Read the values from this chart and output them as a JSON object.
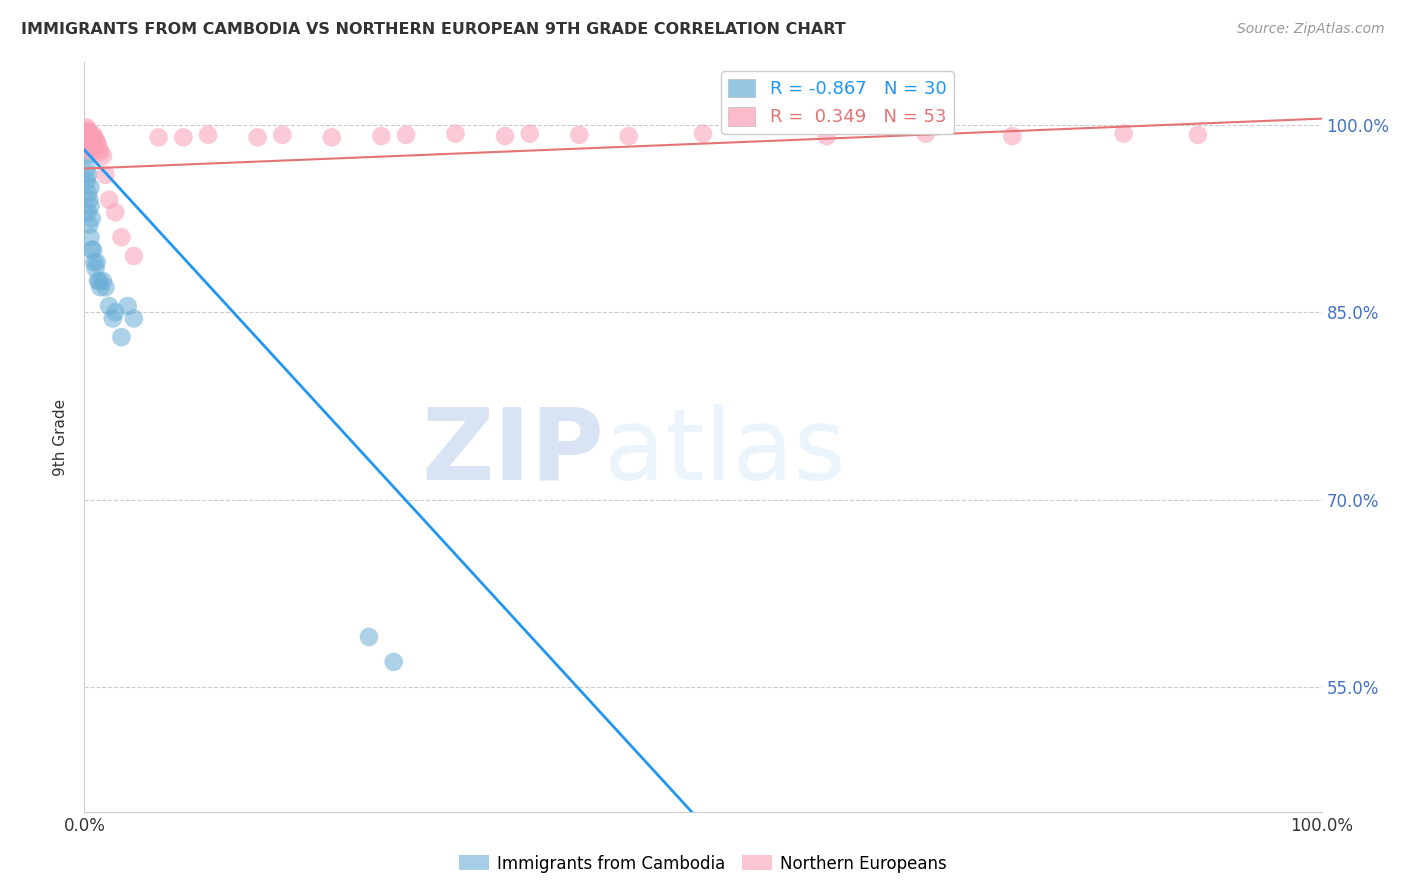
{
  "title": "IMMIGRANTS FROM CAMBODIA VS NORTHERN EUROPEAN 9TH GRADE CORRELATION CHART",
  "source": "Source: ZipAtlas.com",
  "ylabel": "9th Grade",
  "legend_blue_r": "-0.867",
  "legend_blue_n": "30",
  "legend_pink_r": "0.349",
  "legend_pink_n": "53",
  "blue_scatter_x": [
    0.001,
    0.002,
    0.002,
    0.003,
    0.003,
    0.003,
    0.004,
    0.004,
    0.005,
    0.005,
    0.005,
    0.006,
    0.006,
    0.007,
    0.008,
    0.009,
    0.01,
    0.011,
    0.012,
    0.013,
    0.015,
    0.017,
    0.02,
    0.023,
    0.025,
    0.03,
    0.035,
    0.04,
    0.23,
    0.25
  ],
  "blue_scatter_y": [
    0.975,
    0.965,
    0.955,
    0.96,
    0.945,
    0.93,
    0.94,
    0.92,
    0.95,
    0.935,
    0.91,
    0.925,
    0.9,
    0.9,
    0.89,
    0.885,
    0.89,
    0.875,
    0.875,
    0.87,
    0.875,
    0.87,
    0.855,
    0.845,
    0.85,
    0.83,
    0.855,
    0.845,
    0.59,
    0.57
  ],
  "pink_scatter_x": [
    0.001,
    0.001,
    0.001,
    0.002,
    0.002,
    0.002,
    0.002,
    0.003,
    0.003,
    0.003,
    0.003,
    0.004,
    0.004,
    0.004,
    0.005,
    0.005,
    0.006,
    0.006,
    0.007,
    0.007,
    0.008,
    0.008,
    0.009,
    0.009,
    0.01,
    0.011,
    0.012,
    0.013,
    0.015,
    0.017,
    0.02,
    0.025,
    0.03,
    0.04,
    0.06,
    0.08,
    0.1,
    0.14,
    0.16,
    0.2,
    0.24,
    0.26,
    0.3,
    0.34,
    0.36,
    0.4,
    0.44,
    0.5,
    0.6,
    0.68,
    0.75,
    0.84,
    0.9
  ],
  "pink_scatter_y": [
    0.995,
    0.99,
    0.985,
    0.998,
    0.993,
    0.988,
    0.982,
    0.996,
    0.992,
    0.986,
    0.98,
    0.994,
    0.99,
    0.984,
    0.992,
    0.988,
    0.99,
    0.984,
    0.992,
    0.986,
    0.99,
    0.984,
    0.988,
    0.982,
    0.986,
    0.984,
    0.98,
    0.978,
    0.975,
    0.96,
    0.94,
    0.93,
    0.91,
    0.895,
    0.99,
    0.99,
    0.992,
    0.99,
    0.992,
    0.99,
    0.991,
    0.992,
    0.993,
    0.991,
    0.993,
    0.992,
    0.991,
    0.993,
    0.991,
    0.993,
    0.991,
    0.993,
    0.992
  ],
  "blue_line_x": [
    0.0,
    1.0
  ],
  "blue_line_y": [
    0.98,
    -0.1
  ],
  "pink_line_x": [
    0.0,
    1.0
  ],
  "pink_line_y": [
    0.965,
    1.005
  ],
  "blue_color": "#6baed6",
  "pink_color": "#fa9fb5",
  "blue_line_color": "#2196f3",
  "pink_line_color": "#e57373",
  "watermark_zip": "ZIP",
  "watermark_atlas": "atlas",
  "background_color": "#ffffff",
  "grid_color": "#cccccc",
  "xlim": [
    0.0,
    1.0
  ],
  "ylim": [
    0.45,
    1.05
  ],
  "yticks": [
    0.55,
    0.7,
    0.85,
    1.0
  ],
  "ytick_labels_right": [
    "55.0%",
    "70.0%",
    "85.0%",
    "100.0%"
  ],
  "xtick_positions": [
    0.0,
    0.2,
    0.4,
    0.6,
    0.8,
    1.0
  ],
  "xtick_labels": [
    "0.0%",
    "",
    "",
    "",
    "",
    "100.0%"
  ]
}
